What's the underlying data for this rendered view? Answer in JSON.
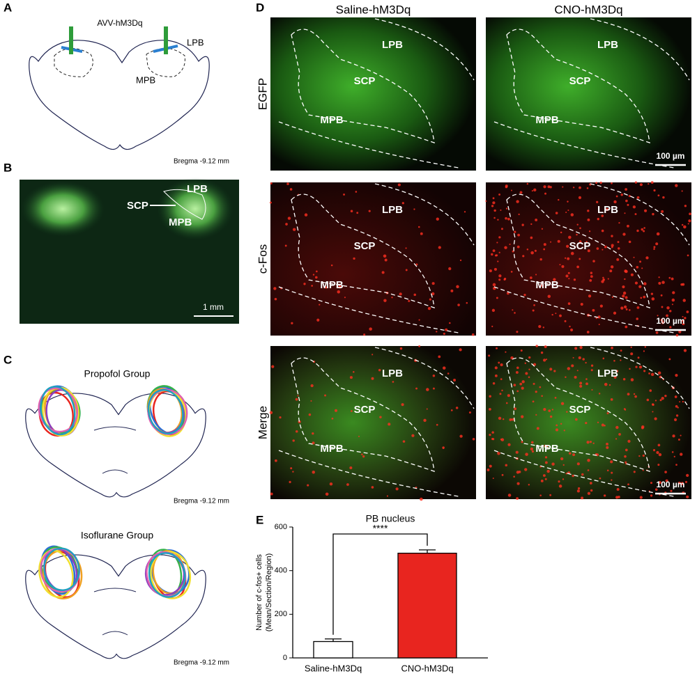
{
  "panel_labels": [
    "A",
    "B",
    "C",
    "D",
    "E"
  ],
  "panel_a": {
    "virus": "AVV-hM3Dq",
    "lpb": "LPB",
    "mpb": "MPB",
    "bregma": "Bregma -9.12 mm"
  },
  "panel_b": {
    "scp": "SCP",
    "lpb": "LPB",
    "mpb": "MPB",
    "scale_bar": "1 mm"
  },
  "panel_c": {
    "groups": [
      {
        "title": "Propofol Group",
        "bregma": "Bregma -9.12 mm"
      },
      {
        "title": "Isoflurane Group",
        "bregma": "Bregma -9.12 mm"
      }
    ]
  },
  "panel_d": {
    "columns": [
      "Saline-hM3Dq",
      "CNO-hM3Dq"
    ],
    "rows": [
      "EGFP",
      "c-Fos",
      "Merge"
    ],
    "regions": {
      "lpb": "LPB",
      "scp": "SCP",
      "mpb": "MPB"
    },
    "scale_bar": "100 µm"
  },
  "chart_data": {
    "type": "bar",
    "title": "PB nucleus",
    "y_label": [
      "Number of c-fos+ cells",
      "(Mean/Section/Region)"
    ],
    "categories": [
      "Saline-hM3Dq",
      "CNO-hM3Dq"
    ],
    "values": [
      75,
      480
    ],
    "errors": [
      12,
      15
    ],
    "colors": [
      "#ffffff",
      "#e8251f"
    ],
    "annotation": "****",
    "ylim": [
      0,
      600
    ],
    "yticks": [
      0,
      200,
      400,
      600
    ]
  }
}
